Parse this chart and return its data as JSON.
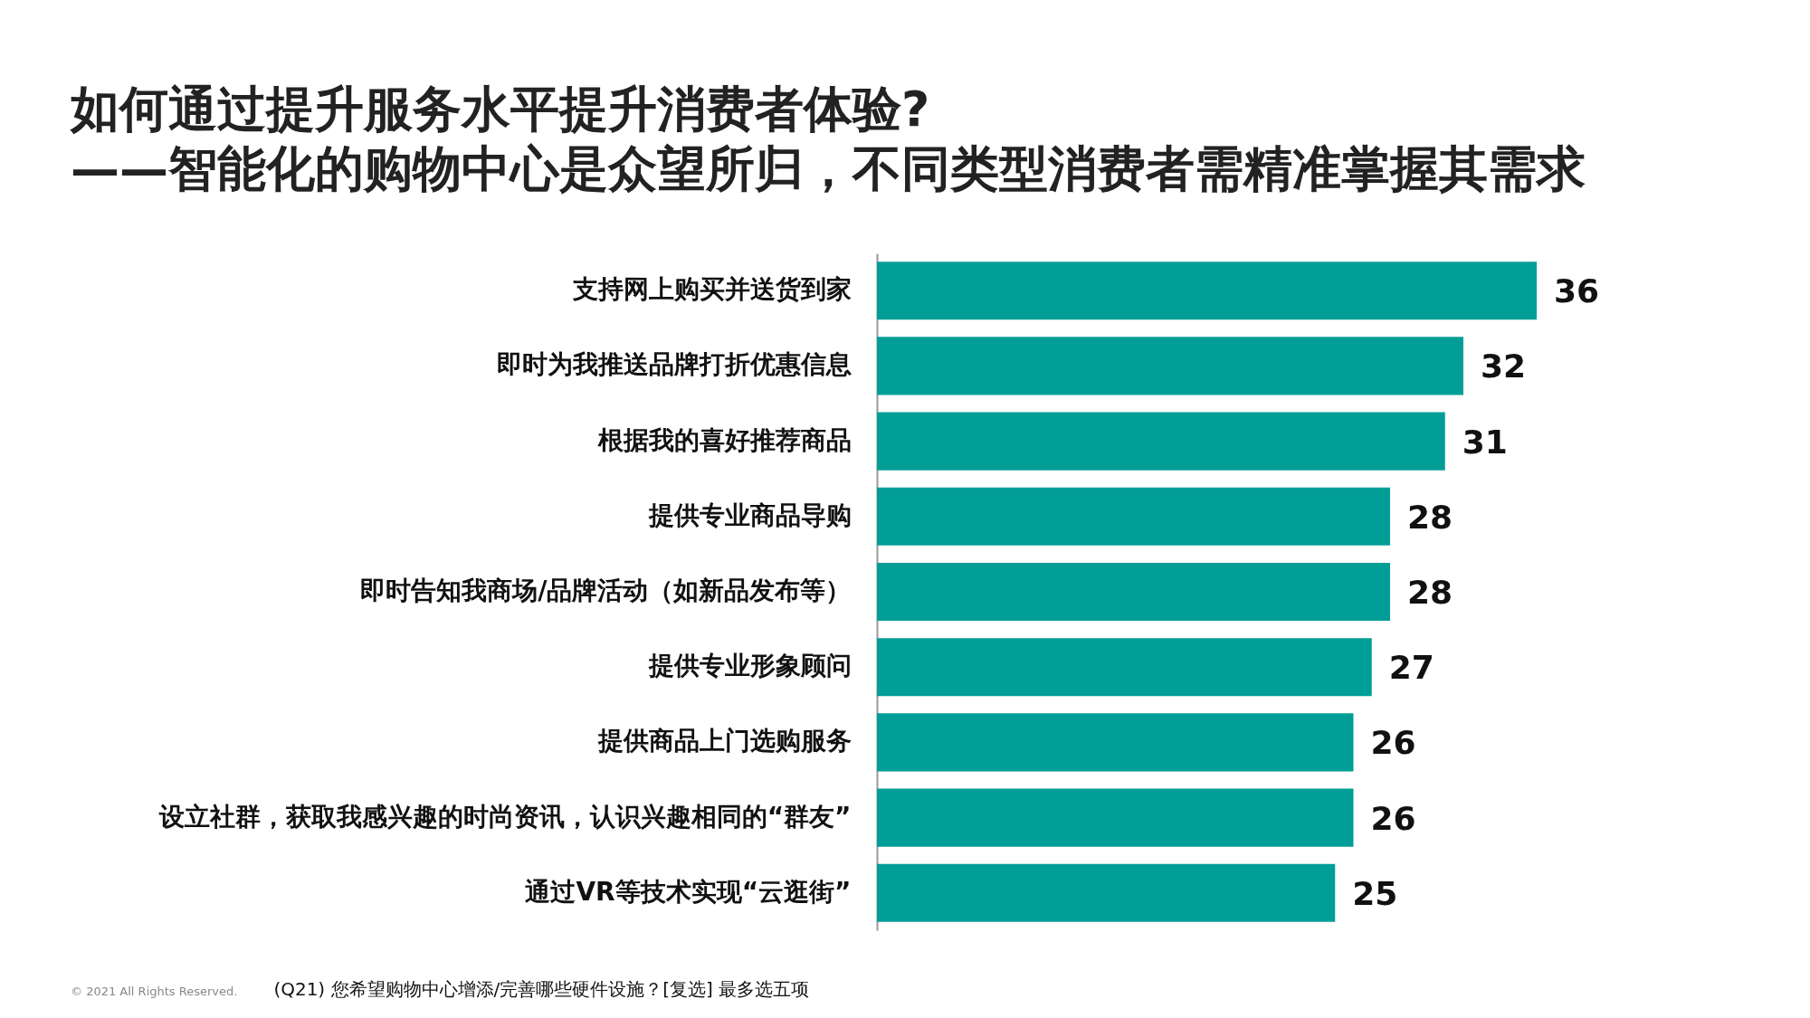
{
  "chart_data": {
    "type": "bar",
    "orientation": "horizontal",
    "title": "如何通过提升服务水平提升消费者体验?",
    "subtitle": "——智能化的购物中心是众望所归，不同类型消费者需精准掌握其需求",
    "categories": [
      "支持网上购买并送货到家",
      "即时为我推送品牌打折优惠信息",
      "根据我的喜好推荐商品",
      "提供专业商品导购",
      "即时告知我商场/品牌活动（如新品发布等）",
      "提供专业形象顾问",
      "提供商品上门选购服务",
      "设立社群，获取我感兴趣的时尚资讯，认识兴趣相同的“群友”",
      "通过VR等技术实现“云逛街”"
    ],
    "values": [
      36,
      32,
      31,
      28,
      28,
      27,
      26,
      26,
      25
    ],
    "color": "#009e96",
    "data_labels": true,
    "annotations": [
      "© 2021 All Rights Reserved.",
      "(Q21) 您希望购物中心增添/完善哪些硬件设施？[复选] 最多选五项"
    ]
  }
}
